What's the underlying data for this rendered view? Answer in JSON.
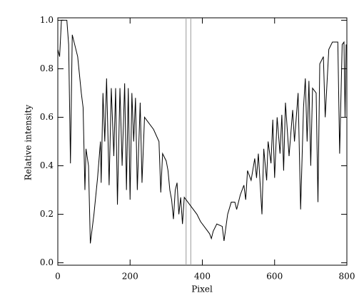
{
  "chart_data": {
    "type": "line",
    "x_label": "Pixel",
    "y_label": "Relative intensity",
    "xlim": [
      0,
      800
    ],
    "ylim": [
      -0.01,
      1.01
    ],
    "xticks": [
      0,
      200,
      400,
      600,
      800
    ],
    "yticks": [
      {
        "value": 0,
        "label": "0.0"
      },
      {
        "value": 0.2,
        "label": "0.2"
      },
      {
        "value": 0.4,
        "label": "0.4"
      },
      {
        "value": 0.6,
        "label": "0.6"
      },
      {
        "value": 0.8,
        "label": "0.8"
      },
      {
        "value": 1,
        "label": "1.0"
      }
    ],
    "vlines": [
      355,
      368
    ],
    "color": "#000000",
    "x": [
      0,
      5,
      10,
      25,
      30,
      35,
      40,
      55,
      65,
      70,
      75,
      78,
      85,
      90,
      100,
      110,
      118,
      120,
      125,
      130,
      135,
      142,
      148,
      155,
      160,
      165,
      172,
      178,
      185,
      190,
      195,
      200,
      205,
      210,
      215,
      220,
      228,
      233,
      240,
      250,
      265,
      280,
      285,
      290,
      300,
      305,
      310,
      315,
      320,
      325,
      330,
      335,
      340,
      345,
      350,
      360,
      370,
      385,
      395,
      410,
      420,
      425,
      430,
      440,
      455,
      460,
      470,
      480,
      490,
      495,
      505,
      515,
      520,
      525,
      535,
      545,
      550,
      555,
      565,
      570,
      578,
      582,
      590,
      595,
      600,
      607,
      615,
      620,
      625,
      630,
      640,
      650,
      655,
      665,
      672,
      680,
      685,
      690,
      695,
      700,
      705,
      715,
      720,
      725,
      735,
      740,
      750,
      760,
      775,
      780,
      787,
      792,
      795,
      798
    ],
    "values": [
      0.88,
      0.85,
      1.0,
      1.0,
      0.9,
      0.41,
      0.94,
      0.85,
      0.7,
      0.64,
      0.3,
      0.47,
      0.4,
      0.08,
      0.2,
      0.35,
      0.5,
      0.33,
      0.7,
      0.5,
      0.76,
      0.32,
      0.72,
      0.44,
      0.72,
      0.24,
      0.72,
      0.4,
      0.74,
      0.3,
      0.72,
      0.26,
      0.7,
      0.5,
      0.68,
      0.3,
      0.66,
      0.33,
      0.6,
      0.58,
      0.55,
      0.5,
      0.29,
      0.45,
      0.42,
      0.38,
      0.3,
      0.26,
      0.18,
      0.3,
      0.33,
      0.2,
      0.27,
      0.16,
      0.27,
      0.25,
      0.23,
      0.2,
      0.17,
      0.14,
      0.12,
      0.1,
      0.13,
      0.16,
      0.15,
      0.09,
      0.2,
      0.25,
      0.25,
      0.22,
      0.28,
      0.32,
      0.26,
      0.38,
      0.34,
      0.43,
      0.35,
      0.45,
      0.2,
      0.47,
      0.34,
      0.5,
      0.41,
      0.59,
      0.35,
      0.6,
      0.45,
      0.61,
      0.38,
      0.66,
      0.44,
      0.63,
      0.5,
      0.7,
      0.22,
      0.64,
      0.76,
      0.5,
      0.75,
      0.4,
      0.72,
      0.7,
      0.25,
      0.82,
      0.85,
      0.6,
      0.88,
      0.91,
      0.91,
      0.45,
      0.9,
      0.91,
      0.6,
      0.9
    ]
  }
}
